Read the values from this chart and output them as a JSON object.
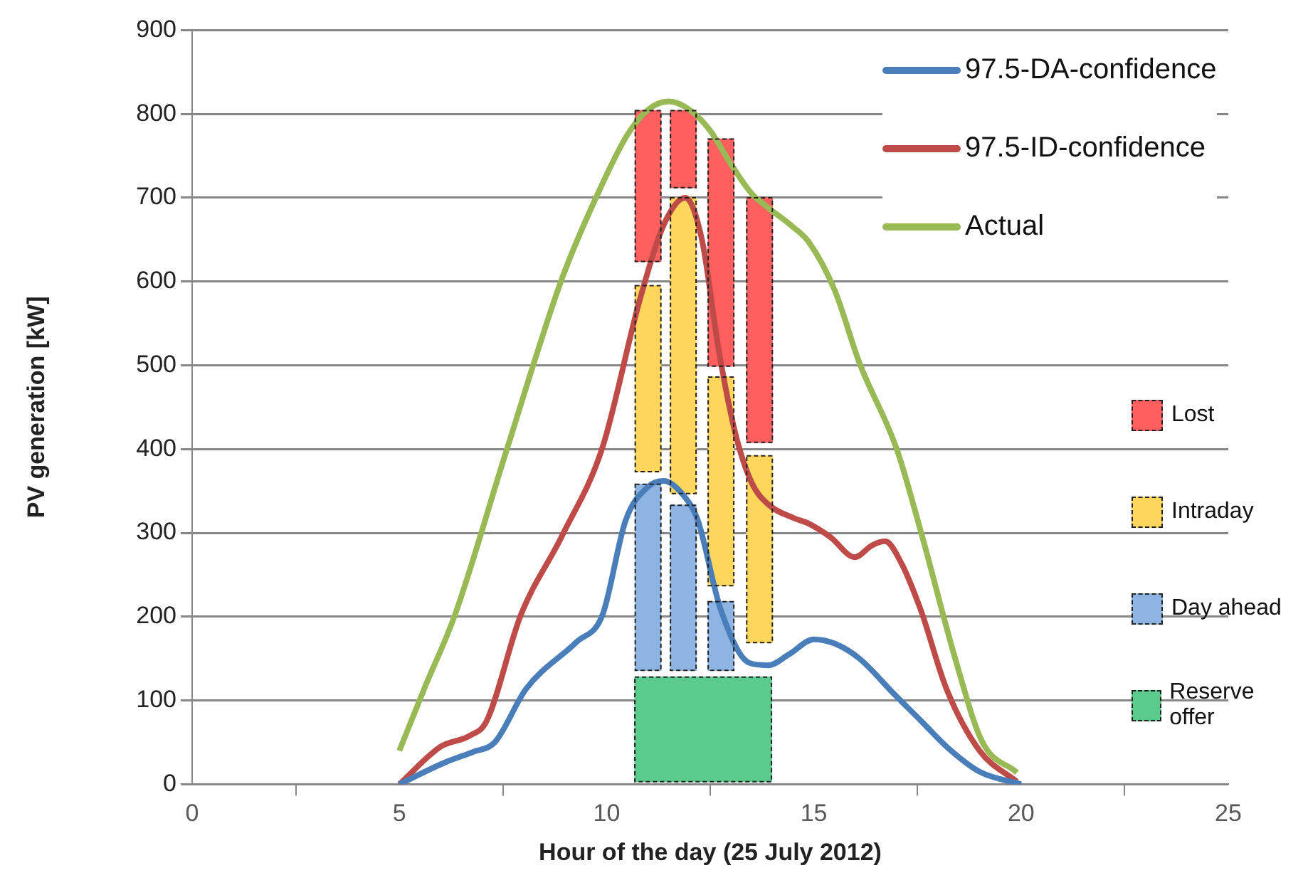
{
  "chart_data": {
    "type": "line",
    "xlabel": "Hour of the day (25 July 2012)",
    "ylabel": "PV generation [kW]",
    "xlim": [
      0,
      25
    ],
    "xticks": [
      0,
      5,
      10,
      15,
      20,
      25
    ],
    "ylim": [
      0,
      900
    ],
    "yticks": [
      0,
      100,
      200,
      300,
      400,
      500,
      600,
      700,
      800,
      900
    ],
    "grid": "y",
    "legend": "right",
    "marker": "none",
    "line_style": "solid",
    "series": [
      {
        "type": "bar",
        "name": "Lost",
        "color": "#ff5f5f",
        "x": [
          11,
          11.85,
          12.76,
          13.69
        ],
        "base": [
          624,
          712,
          499,
          408
        ],
        "values": [
          180,
          92,
          271,
          292
        ]
      },
      {
        "type": "bar",
        "name": "Intraday",
        "color": "#ffd65c",
        "x": [
          11,
          11.85,
          12.76,
          13.69
        ],
        "base": [
          373,
          347,
          237,
          169
        ],
        "values": [
          222,
          353,
          249,
          223
        ]
      },
      {
        "type": "bar",
        "name": "Day ahead",
        "color": "#8eb4e3",
        "x": [
          11,
          11.85,
          12.76
        ],
        "base": [
          136,
          136,
          136
        ],
        "values": [
          222,
          197,
          82
        ]
      },
      {
        "type": "bar",
        "name": "Reserve offer",
        "color": "#5bcb8d",
        "x": [
          12.33
        ],
        "base": [
          3
        ],
        "values": [
          125
        ]
      },
      {
        "name": "97.5-DA-confidence",
        "color": "#4a7ebb",
        "x": [
          5,
          6.1,
          6.8,
          7.3,
          8.06,
          9.28,
          9.9,
          10.46,
          11,
          11.38,
          11.85,
          12.2,
          12.75,
          13.44,
          13.9,
          14.4,
          15,
          15.5,
          16.1,
          16.95,
          17.6,
          18.2,
          19,
          20
        ],
        "values": [
          0,
          26,
          39,
          50,
          114,
          170,
          202,
          315,
          355,
          362,
          345,
          315,
          209,
          145,
          142,
          155,
          173,
          168,
          150,
          107,
          75,
          45,
          15,
          0
        ]
      },
      {
        "name": "97.5-ID-confidence",
        "color": "#be4b48",
        "x": [
          5,
          6,
          6.7,
          7.1,
          7.93,
          8.92,
          9.9,
          10.8,
          11.4,
          11.9,
          12.3,
          12.7,
          13.1,
          13.5,
          13.9,
          14.5,
          14.88,
          15.4,
          15.99,
          16.4,
          16.72,
          17.1,
          17.58,
          18.2,
          19,
          19.9
        ],
        "values": [
          0,
          45,
          58,
          75,
          202,
          296,
          402,
          578,
          670,
          700,
          650,
          520,
          420,
          360,
          334,
          318,
          311,
          295,
          271,
          285,
          290,
          265,
          208,
          114,
          40,
          3
        ]
      },
      {
        "name": "Actual",
        "color": "#98b954",
        "x": [
          5,
          5.6,
          6.34,
          7.57,
          8.92,
          9.78,
          10.5,
          11,
          11.5,
          12,
          12.5,
          13,
          13.5,
          13.9,
          14.5,
          14.88,
          15.5,
          16.1,
          17,
          17.58,
          18.44,
          19.06,
          19.9
        ],
        "values": [
          40,
          114,
          202,
          396,
          603,
          704,
          775,
          805,
          815,
          805,
          780,
          740,
          705,
          688,
          665,
          647,
          590,
          503,
          400,
          302,
          145,
          51,
          14
        ]
      }
    ]
  }
}
